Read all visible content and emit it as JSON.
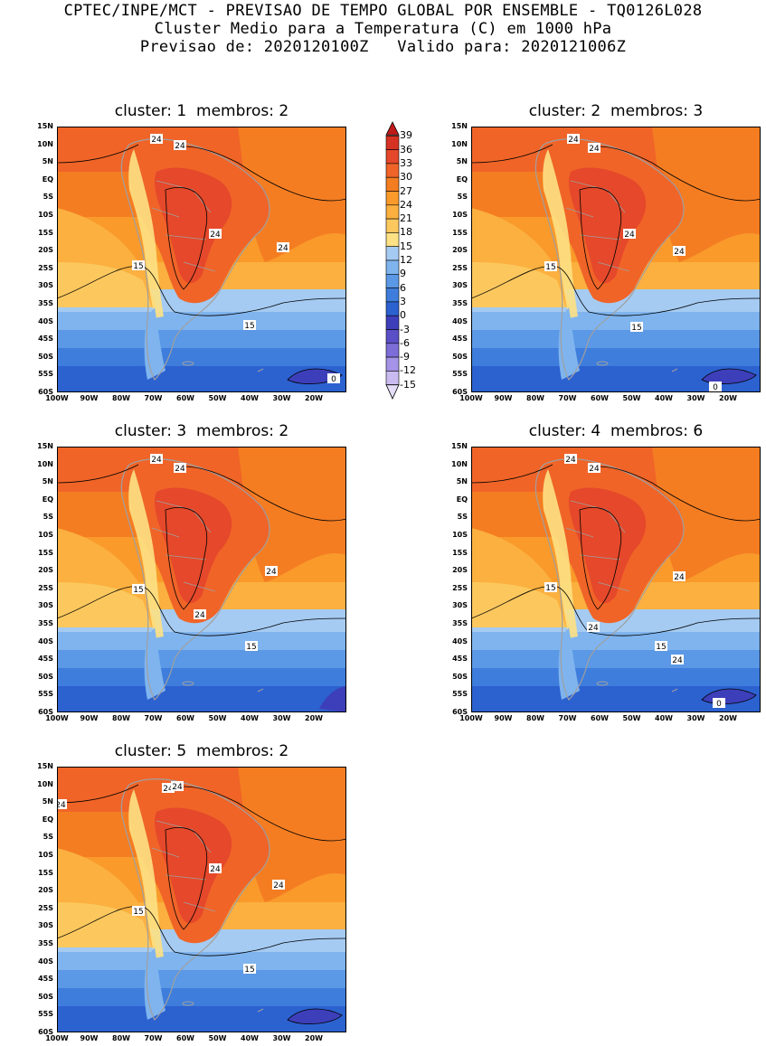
{
  "header": {
    "line1": "CPTEC/INPE/MCT - PREVISAO DE TEMPO GLOBAL POR ENSEMBLE - TQ0126L028",
    "line2": "Cluster Medio para a Temperatura (C) em 1000 hPa",
    "line3": "Previsao de: 2020120100Z   Valido para: 2020121006Z"
  },
  "panels": [
    {
      "title": "cluster: 1  membros: 2",
      "contour_labels": [
        "24",
        "24",
        "24",
        "24",
        "15",
        "15",
        "0"
      ]
    },
    {
      "title": "cluster: 2  membros: 3",
      "contour_labels": [
        "24",
        "24",
        "24",
        "24",
        "15",
        "15",
        "0"
      ]
    },
    {
      "title": "cluster: 3  membros: 2",
      "contour_labels": [
        "24",
        "24",
        "24",
        "24",
        "15",
        "15"
      ]
    },
    {
      "title": "cluster: 4  membros: 6",
      "contour_labels": [
        "24",
        "24",
        "24",
        "24",
        "24",
        "15",
        "15",
        "0"
      ]
    },
    {
      "title": "cluster: 5  membros: 2",
      "contour_labels": [
        "24",
        "24",
        "24",
        "24",
        "15",
        "15",
        "24"
      ]
    }
  ],
  "lat_labels": [
    "15N",
    "10N",
    "5N",
    "EQ",
    "5S",
    "10S",
    "15S",
    "20S",
    "25S",
    "30S",
    "35S",
    "40S",
    "45S",
    "50S",
    "55S",
    "60S"
  ],
  "lon_labels": [
    "100W",
    "90W",
    "80W",
    "70W",
    "60W",
    "50W",
    "40W",
    "30W",
    "20W"
  ],
  "colorbar": {
    "labels": [
      "39",
      "36",
      "33",
      "30",
      "27",
      "24",
      "21",
      "18",
      "15",
      "12",
      "9",
      "6",
      "3",
      "0",
      "-3",
      "-6",
      "-9",
      "-12",
      "-15"
    ],
    "colors": [
      "#c01a1a",
      "#d63223",
      "#e5482a",
      "#f06428",
      "#f47d22",
      "#f99a2b",
      "#fbb03f",
      "#fcc85e",
      "#fde184",
      "#a5cbf2",
      "#7fb4ee",
      "#5b98e5",
      "#3e7ddc",
      "#2c61d0",
      "#3d3fba",
      "#5b4fc8",
      "#7c6dd8",
      "#a493e6",
      "#c9bbf0",
      "#e4ddf7"
    ]
  }
}
